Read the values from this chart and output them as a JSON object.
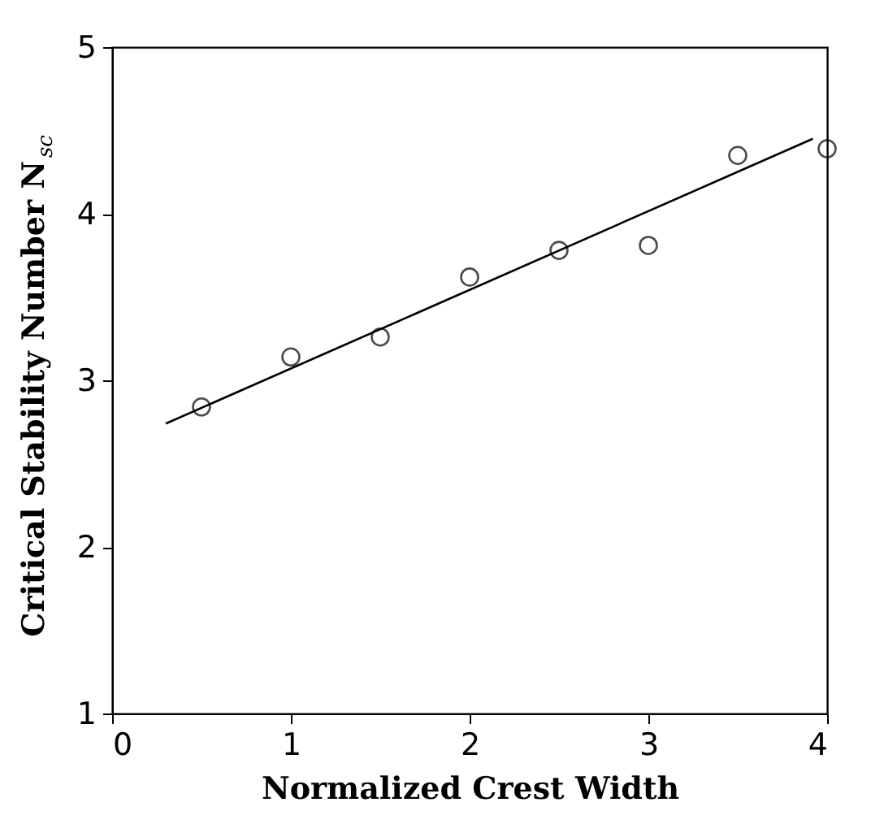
{
  "chart_data": {
    "type": "scatter",
    "xlabel": "Normalized Crest Width",
    "ylabel": "Critical Stability Number N$_{sc}$",
    "xlim": [
      0,
      4
    ],
    "ylim": [
      1,
      5
    ],
    "xticks": [
      0,
      1,
      2,
      3,
      4
    ],
    "yticks": [
      1,
      2,
      3,
      4,
      5
    ],
    "grid": false,
    "series": [
      {
        "type": "scatter",
        "marker": "circle",
        "color": "#000000",
        "x": [
          0.5,
          1,
          1.5,
          2,
          2.5,
          3,
          3.5,
          4
        ],
        "values": [
          2.84,
          3.14,
          3.26,
          3.62,
          3.78,
          3.81,
          4.35,
          4.39
        ]
      },
      {
        "type": "line",
        "line_style": "solid",
        "color": "#000000",
        "x": [
          0.3,
          3.92
        ],
        "values": [
          2.74,
          4.45
        ]
      }
    ]
  }
}
